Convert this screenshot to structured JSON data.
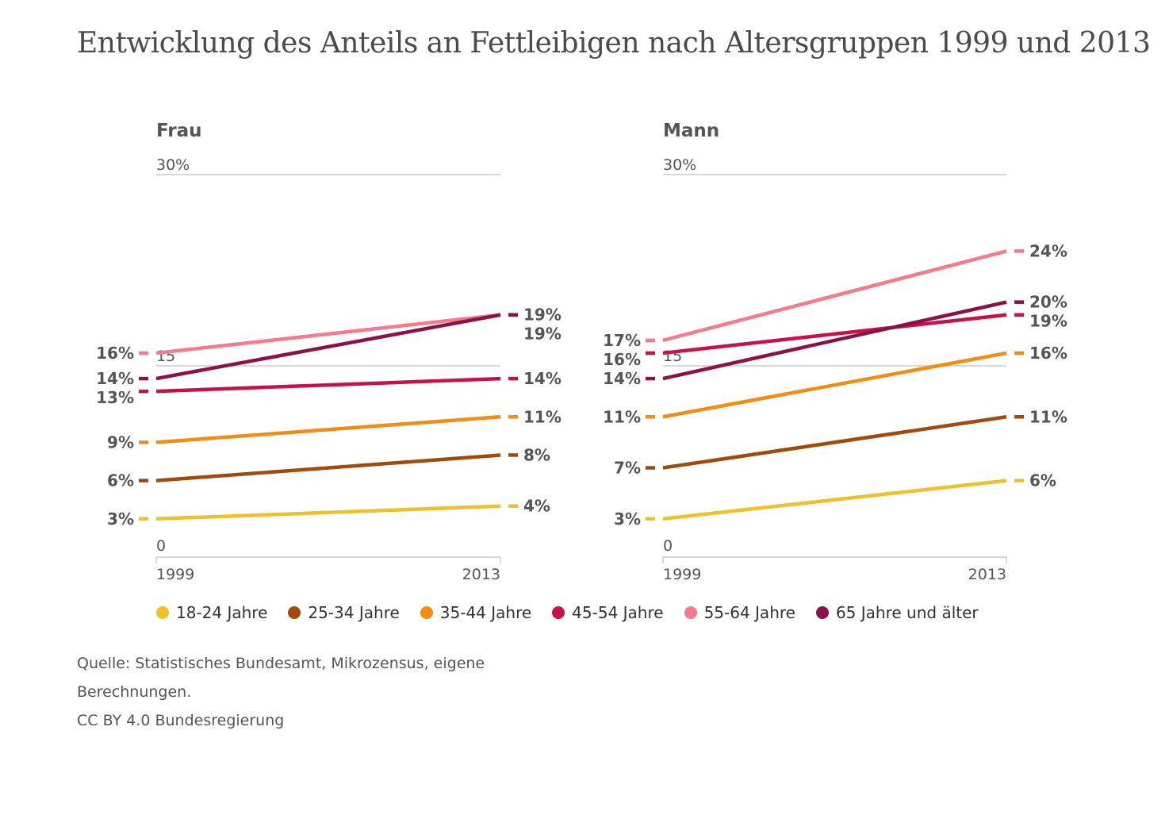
{
  "title": "Entwicklung des Anteils an Fettleibigen nach Altersgruppen 1999 und 2013",
  "chart_data": [
    {
      "type": "line",
      "title": "Frau",
      "x": [
        "1999",
        "2013"
      ],
      "ylim": [
        0,
        30
      ],
      "y_ticks": [
        "0",
        "15",
        "30%"
      ],
      "series": [
        {
          "name": "18-24 Jahre",
          "values": [
            3,
            4
          ],
          "labels": [
            "3%",
            "4%"
          ],
          "color": "#f0c02a"
        },
        {
          "name": "25-34 Jahre",
          "values": [
            6,
            8
          ],
          "labels": [
            "6%",
            "8%"
          ],
          "color": "#a04b0a"
        },
        {
          "name": "35-44 Jahre",
          "values": [
            9,
            11
          ],
          "labels": [
            "9%",
            "11%"
          ],
          "color": "#f28c12"
        },
        {
          "name": "45-54 Jahre",
          "values": [
            13,
            14
          ],
          "labels": [
            "13%",
            "14%"
          ],
          "color": "#c9104a"
        },
        {
          "name": "55-64 Jahre",
          "values": [
            16,
            19
          ],
          "labels": [
            "16%",
            "19%"
          ],
          "color": "#f47a8c"
        },
        {
          "name": "65 Jahre und älter",
          "values": [
            14,
            19
          ],
          "labels": [
            "14%",
            "19%"
          ],
          "color": "#8b1146"
        }
      ]
    },
    {
      "type": "line",
      "title": "Mann",
      "x": [
        "1999",
        "2013"
      ],
      "ylim": [
        0,
        30
      ],
      "y_ticks": [
        "0",
        "15",
        "30%"
      ],
      "series": [
        {
          "name": "18-24 Jahre",
          "values": [
            3,
            6
          ],
          "labels": [
            "3%",
            "6%"
          ],
          "color": "#f0c02a"
        },
        {
          "name": "25-34 Jahre",
          "values": [
            7,
            11
          ],
          "labels": [
            "7%",
            "11%"
          ],
          "color": "#a04b0a"
        },
        {
          "name": "35-44 Jahre",
          "values": [
            11,
            16
          ],
          "labels": [
            "11%",
            "16%"
          ],
          "color": "#f28c12"
        },
        {
          "name": "45-54 Jahre",
          "values": [
            16,
            19
          ],
          "labels": [
            "16%",
            "19%"
          ],
          "color": "#c9104a"
        },
        {
          "name": "55-64 Jahre",
          "values": [
            17,
            24
          ],
          "labels": [
            "17%",
            "24%"
          ],
          "color": "#f47a8c"
        },
        {
          "name": "65 Jahre und älter",
          "values": [
            14,
            20
          ],
          "labels": [
            "14%",
            "20%"
          ],
          "color": "#8b1146"
        }
      ]
    }
  ],
  "legend": [
    {
      "label": "18-24 Jahre",
      "color": "#f0c02a"
    },
    {
      "label": "25-34 Jahre",
      "color": "#a04b0a"
    },
    {
      "label": "35-44 Jahre",
      "color": "#f28c12"
    },
    {
      "label": "45-54 Jahre",
      "color": "#c9104a"
    },
    {
      "label": "55-64 Jahre",
      "color": "#f47a8c"
    },
    {
      "label": "65 Jahre und älter",
      "color": "#8b1146"
    }
  ],
  "source": {
    "line1": "Quelle: Statistisches Bundesamt, Mikrozensus, eigene",
    "line2": "Berechnungen.",
    "line3": "CC BY 4.0 Bundesregierung"
  }
}
